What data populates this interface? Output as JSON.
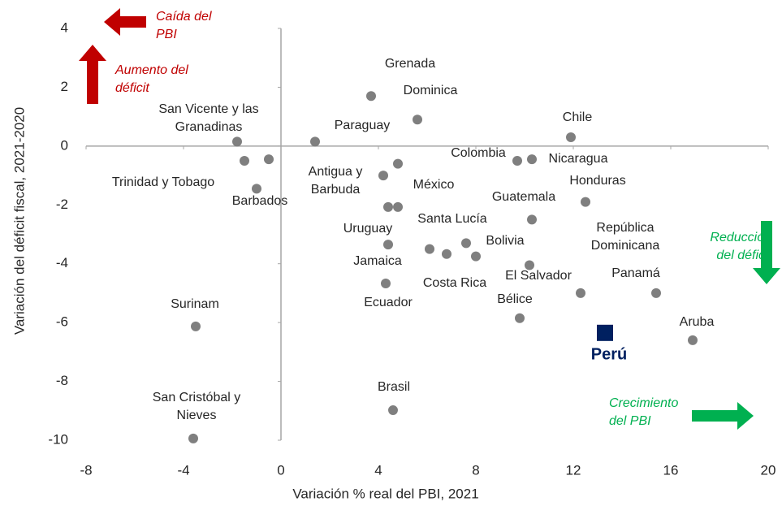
{
  "chart_data": {
    "type": "scatter",
    "xlabel": "Variación % real del PBI, 2021",
    "ylabel": "Variación del déficit fiscal, 2021-2020",
    "xlim": [
      -8,
      20
    ],
    "xticks": [
      -8,
      -4,
      0,
      4,
      8,
      12,
      16,
      20
    ],
    "ylim": [
      -10,
      4
    ],
    "yticks": [
      4,
      2,
      0,
      -2,
      -4,
      -6,
      -8,
      -10
    ],
    "grid": false,
    "series": [
      {
        "color": "#7f7f7f",
        "marker": "circle",
        "x": [
          3.7,
          5.6,
          11.9,
          1.4,
          -1.8,
          -1.5,
          -0.5,
          -1.0,
          9.7,
          10.3,
          4.2,
          4.8,
          4.4,
          4.8,
          12.5,
          10.3,
          4.4,
          6.1,
          6.8,
          7.6,
          8.0,
          10.2,
          4.3,
          12.3,
          15.4,
          9.8,
          -3.5,
          16.9,
          4.6,
          -3.6
        ],
        "values": [
          1.7,
          0.9,
          0.3,
          0.15,
          0.15,
          -0.5,
          -0.45,
          -1.45,
          -0.5,
          -0.45,
          -1.0,
          -0.6,
          -2.07,
          -2.07,
          -1.9,
          -2.5,
          -3.35,
          -3.5,
          -3.67,
          -3.3,
          -3.75,
          -4.05,
          -4.67,
          -5.0,
          -5.0,
          -5.85,
          -6.13,
          -6.6,
          -8.98,
          -9.94
        ],
        "labels": [
          "Grenada",
          "Dominica",
          "Chile",
          "Paraguay",
          "San Vicente y las\nGranadinas",
          "Trinidad y Tobago",
          null,
          "Barbados",
          "Colombia",
          "Nicaragua",
          "Antigua y\nBarbuda",
          "México",
          null,
          null,
          "Honduras",
          "Guatemala",
          "Uruguay",
          "Santa Lucía",
          "Jamaica",
          "Costa Rica",
          "Bolivia",
          "El Salvador",
          "Ecuador",
          "República\nDominicana",
          "Panamá",
          "Bélice",
          "Surinam",
          "Aruba",
          "Brasil",
          "San Cristóbal y\nNieves"
        ]
      },
      {
        "color": "#002060",
        "marker": "square",
        "x": [
          13.3
        ],
        "values": [
          -6.35
        ],
        "labels": [
          "Perú"
        ]
      }
    ],
    "annotations": [
      {
        "text": "Caída del\nPBI",
        "color": "#c00000"
      },
      {
        "text": "Aumento del\ndéficit",
        "color": "#c00000"
      },
      {
        "text": "Reducción\ndel déficit",
        "color": "#00b050"
      },
      {
        "text": "Crecimiento\ndel PBI",
        "color": "#00b050"
      }
    ]
  }
}
